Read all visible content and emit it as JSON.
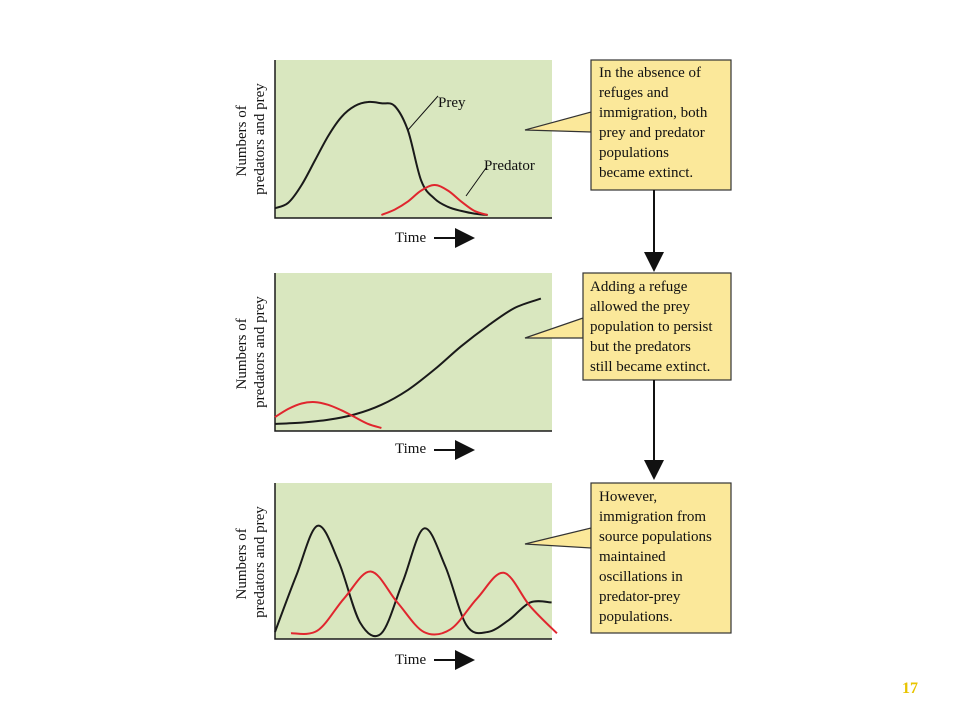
{
  "slide_number": "17",
  "colors": {
    "prey": "#1a1a1a",
    "predator": "#e0262e",
    "panel": "#d9e7bf",
    "callout": "#fbe89a"
  },
  "chart_data": [
    {
      "type": "line",
      "xlabel": "Time",
      "ylabel": [
        "Numbers of",
        "predators and prey"
      ],
      "grid": false,
      "series": [
        {
          "name": "Prey",
          "x": [
            0,
            5,
            10,
            15,
            20,
            25,
            30,
            35,
            40,
            45,
            50,
            55,
            60,
            65,
            70,
            75,
            80
          ],
          "values": [
            5,
            9,
            22,
            40,
            58,
            72,
            80,
            83,
            82,
            80,
            62,
            25,
            12,
            6,
            3,
            1,
            0
          ]
        },
        {
          "name": "Predator",
          "x": [
            40,
            45,
            50,
            55,
            60,
            65,
            70,
            75,
            80
          ],
          "values": [
            0,
            4,
            10,
            18,
            22,
            18,
            10,
            3,
            0
          ]
        }
      ]
    },
    {
      "type": "line",
      "xlabel": "Time",
      "ylabel": [
        "Numbers of",
        "predators and prey"
      ],
      "grid": false,
      "series": [
        {
          "name": "",
          "x": [
            0,
            10,
            20,
            30,
            40,
            50,
            60,
            70,
            80,
            90,
            100
          ],
          "values": [
            3,
            4,
            6,
            10,
            17,
            28,
            43,
            60,
            75,
            88,
            95
          ]
        },
        {
          "name": "",
          "x": [
            0,
            5,
            10,
            15,
            20,
            25,
            30,
            35,
            40
          ],
          "values": [
            8,
            14,
            18,
            19,
            17,
            13,
            8,
            3,
            0
          ]
        }
      ]
    },
    {
      "type": "line",
      "xlabel": "Time",
      "ylabel": [
        "Numbers of",
        "predators and prey"
      ],
      "grid": false,
      "series": [
        {
          "name": "",
          "x": [
            0,
            8,
            16,
            24,
            32,
            40,
            48,
            56,
            64,
            72,
            80,
            88,
            96,
            104
          ],
          "values": [
            3,
            45,
            82,
            55,
            10,
            2,
            40,
            80,
            52,
            8,
            3,
            12,
            25,
            25
          ]
        },
        {
          "name": "",
          "x": [
            6,
            16,
            26,
            36,
            46,
            56,
            66,
            76,
            86,
            96,
            106
          ],
          "values": [
            2,
            4,
            28,
            48,
            25,
            3,
            5,
            28,
            47,
            22,
            2
          ]
        }
      ]
    }
  ],
  "callouts": [
    [
      "In the absence of",
      "refuges and",
      "immigration, both",
      "prey and predator",
      "populations",
      "became extinct."
    ],
    [
      "Adding a refuge",
      "allowed the prey",
      "population to persist",
      "but the predators",
      "still became extinct."
    ],
    [
      "However,",
      "immigration from",
      "source populations",
      "maintained",
      "oscillations in",
      "predator-prey",
      "populations."
    ]
  ]
}
